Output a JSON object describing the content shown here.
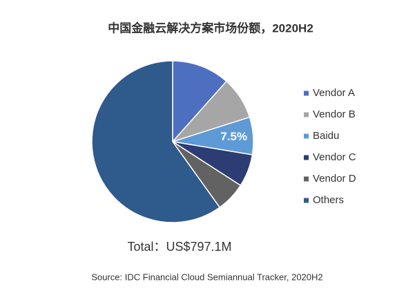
{
  "chart_data": {
    "type": "pie",
    "title": "中国金融云解决方案市场份额，2020H2",
    "categories": [
      "Vendor A",
      "Vendor B",
      "Baidu",
      "Vendor C",
      "Vendor D",
      "Others"
    ],
    "values": [
      11.6,
      8.5,
      7.5,
      6.5,
      6.0,
      59.9
    ],
    "value_labels": [
      null,
      null,
      "7.5%",
      null,
      null,
      null
    ],
    "colors": [
      "#4e6fc0",
      "#a6a6a6",
      "#5d9ad6",
      "#2b3d72",
      "#626262",
      "#2f5a8c"
    ],
    "legend": "right",
    "total_label": "Total：US$797.1M",
    "source": "Source: IDC Financial Cloud Semiannual Tracker, 2020H2"
  }
}
